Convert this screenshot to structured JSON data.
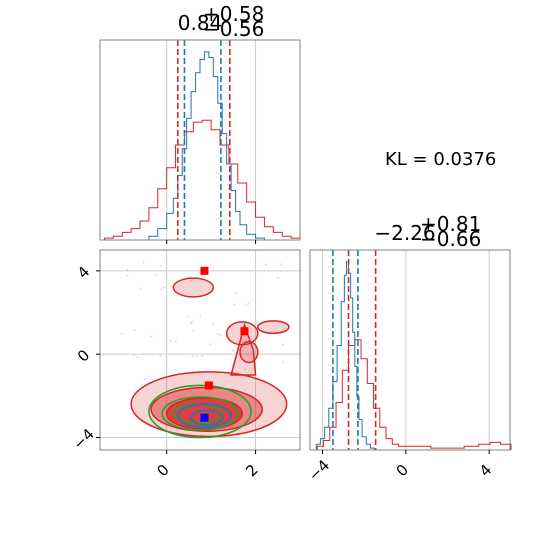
{
  "chart_data": {
    "type": "corner",
    "annotation": "KL = 0.0376",
    "grid": true,
    "colors": {
      "red": "#d62728",
      "blue": "#1f77b4",
      "green": "#2ca02c",
      "marker_blue": "#0000ff",
      "marker_red": "#ff0000",
      "frame": "#808080",
      "grid": "#cccccc"
    },
    "param1": {
      "title_main": "0.84",
      "title_plus": "+0.58",
      "title_minus": "−0.56",
      "range": [
        -1.5,
        3.0
      ],
      "xticks": [
        0,
        2
      ],
      "xtick_labels": [
        "0",
        "2"
      ],
      "red_quantiles": [
        0.25,
        1.42
      ],
      "blue_quantiles": [
        0.4,
        1.22
      ],
      "red_hist_centers": [
        -1.3,
        -1.1,
        -0.9,
        -0.7,
        -0.5,
        -0.3,
        -0.1,
        0.1,
        0.3,
        0.5,
        0.7,
        0.9,
        1.1,
        1.3,
        1.5,
        1.7,
        1.9,
        2.1,
        2.3,
        2.5,
        2.7,
        2.9
      ],
      "red_hist_values": [
        0.01,
        0.02,
        0.04,
        0.06,
        0.1,
        0.17,
        0.27,
        0.38,
        0.5,
        0.57,
        0.62,
        0.63,
        0.58,
        0.5,
        0.4,
        0.3,
        0.2,
        0.12,
        0.07,
        0.04,
        0.02,
        0.01
      ],
      "blue_hist_centers": [
        -0.3,
        -0.1,
        0.1,
        0.2,
        0.3,
        0.4,
        0.5,
        0.6,
        0.7,
        0.8,
        0.9,
        1.0,
        1.1,
        1.2,
        1.3,
        1.4,
        1.5,
        1.6,
        1.7,
        1.9,
        2.1
      ],
      "blue_hist_values": [
        0.02,
        0.06,
        0.14,
        0.22,
        0.34,
        0.48,
        0.64,
        0.78,
        0.88,
        0.95,
        0.99,
        0.96,
        0.86,
        0.72,
        0.56,
        0.4,
        0.26,
        0.15,
        0.08,
        0.03,
        0.01
      ]
    },
    "param2": {
      "title_main": "−2.26",
      "title_plus": "+0.81",
      "title_minus": "−0.66",
      "range": [
        -4.6,
        5.0
      ],
      "ticks": [
        -4,
        0,
        4
      ],
      "tick_labels": [
        "−4",
        "0",
        "4"
      ],
      "red_quantiles": [
        -2.75,
        -1.45
      ],
      "blue_quantiles": [
        -3.5,
        -2.3
      ],
      "red_hist_centers": [
        -4.1,
        -3.8,
        -3.5,
        -3.2,
        -2.9,
        -2.6,
        -2.3,
        -2.0,
        -1.7,
        -1.4,
        -1.1,
        -0.8,
        -0.5,
        -0.2,
        0.2,
        0.8,
        1.6,
        2.4,
        3.2,
        3.8,
        4.3,
        4.8
      ],
      "red_hist_values": [
        0.02,
        0.05,
        0.12,
        0.25,
        0.42,
        0.55,
        0.58,
        0.48,
        0.35,
        0.22,
        0.12,
        0.06,
        0.03,
        0.02,
        0.02,
        0.02,
        0.01,
        0.01,
        0.02,
        0.03,
        0.04,
        0.03
      ],
      "blue_hist_centers": [
        -4.2,
        -4.0,
        -3.8,
        -3.6,
        -3.4,
        -3.2,
        -3.0,
        -2.9,
        -2.8,
        -2.7,
        -2.6,
        -2.5,
        -2.4,
        -2.3,
        -2.2,
        -2.0,
        -1.8,
        -1.6
      ],
      "blue_hist_values": [
        0.03,
        0.06,
        0.12,
        0.22,
        0.36,
        0.55,
        0.78,
        0.92,
        0.99,
        0.93,
        0.8,
        0.62,
        0.44,
        0.28,
        0.16,
        0.07,
        0.03,
        0.01
      ]
    },
    "joint": {
      "xrange": [
        -1.5,
        3.0
      ],
      "yrange": [
        -4.6,
        5.0
      ],
      "red_levels": [
        {
          "cx": 0.95,
          "cy": -2.4,
          "rx": 1.75,
          "ry": 1.55,
          "opacity": 0.2
        },
        {
          "cx": 0.9,
          "cy": -2.65,
          "rx": 1.25,
          "ry": 1.05,
          "opacity": 0.45
        },
        {
          "cx": 0.85,
          "cy": -2.85,
          "rx": 0.85,
          "ry": 0.75,
          "opacity": 0.75
        }
      ],
      "red_islands": [
        {
          "cx": 0.6,
          "cy": 3.2,
          "rx": 0.45,
          "ry": 0.45
        },
        {
          "cx": 1.7,
          "cy": 1.0,
          "rx": 0.35,
          "ry": 0.55
        },
        {
          "cx": 1.85,
          "cy": 0.1,
          "rx": 0.2,
          "ry": 0.5
        },
        {
          "cx": 2.4,
          "cy": 1.3,
          "rx": 0.35,
          "ry": 0.3
        }
      ],
      "blue_contours": [
        {
          "cx": 0.9,
          "cy": -3.05,
          "rx": 0.35,
          "ry": 0.35
        },
        {
          "cx": 0.85,
          "cy": -2.95,
          "rx": 0.6,
          "ry": 0.55
        }
      ],
      "green_contours": [
        {
          "cx": 0.7,
          "cy": -2.85,
          "rx": 0.55,
          "ry": 0.45
        },
        {
          "cx": 0.75,
          "cy": -2.85,
          "rx": 0.85,
          "ry": 0.8
        },
        {
          "cx": 0.75,
          "cy": -2.75,
          "rx": 1.15,
          "ry": 1.25
        }
      ],
      "red_markers": [
        {
          "x": 0.85,
          "y": 4.0
        },
        {
          "x": 1.75,
          "y": 1.1
        },
        {
          "x": 0.95,
          "y": -1.5
        }
      ],
      "blue_marker": {
        "x": 0.85,
        "y": -3.05
      },
      "gridlines_x": [
        0,
        2
      ],
      "gridlines_y": [
        -4,
        0,
        4
      ],
      "xtick_labels": [
        "0",
        "2"
      ],
      "ytick_labels": [
        "4",
        "0",
        "−4"
      ],
      "yticks": [
        4,
        0,
        -4
      ]
    }
  }
}
